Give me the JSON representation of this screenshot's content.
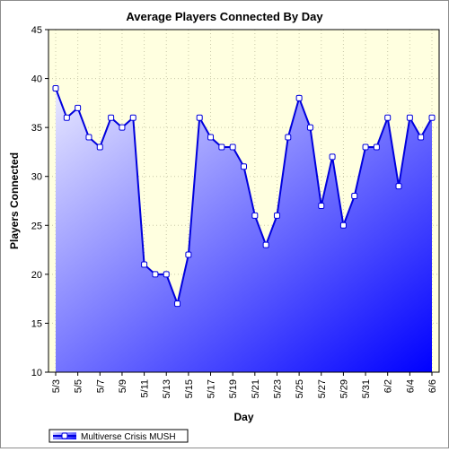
{
  "chart_data": {
    "type": "area",
    "title": "Average Players Connected By Day",
    "xlabel": "Day",
    "ylabel": "Players Connected",
    "ylim": [
      10,
      45
    ],
    "yticks": [
      10,
      15,
      20,
      25,
      30,
      35,
      40,
      45
    ],
    "x": [
      "5/3",
      "5/4",
      "5/5",
      "5/6",
      "5/7",
      "5/8",
      "5/9",
      "5/10",
      "5/11",
      "5/12",
      "5/13",
      "5/14",
      "5/15",
      "5/16",
      "5/17",
      "5/18",
      "5/19",
      "5/20",
      "5/21",
      "5/22",
      "5/23",
      "5/24",
      "5/25",
      "5/26",
      "5/27",
      "5/28",
      "5/29",
      "5/30",
      "5/31",
      "6/1",
      "6/2",
      "6/3",
      "6/4",
      "6/5",
      "6/6"
    ],
    "xtick_labels": [
      "5/3",
      "5/5",
      "5/7",
      "5/9",
      "5/11",
      "5/13",
      "5/15",
      "5/17",
      "5/19",
      "5/21",
      "5/23",
      "5/25",
      "5/27",
      "5/29",
      "5/31",
      "6/2",
      "6/4",
      "6/6"
    ],
    "series": [
      {
        "name": "Multiverse Crisis MUSH",
        "values": [
          39,
          36,
          37,
          34,
          33,
          36,
          35,
          36,
          21,
          20,
          20,
          17,
          22,
          36,
          34,
          33,
          33,
          31,
          26,
          23,
          26,
          34,
          38,
          35,
          27,
          32,
          25,
          28,
          33,
          33,
          36,
          29,
          36,
          34,
          36
        ]
      }
    ],
    "grid": true,
    "legend": "bottom-left",
    "colors": {
      "plot_bg": "#ffffe0",
      "line": "#0000dd",
      "area_top": "#e8e8ff",
      "area_bottom": "#0000ff",
      "grid": "#c8c8a8"
    }
  }
}
